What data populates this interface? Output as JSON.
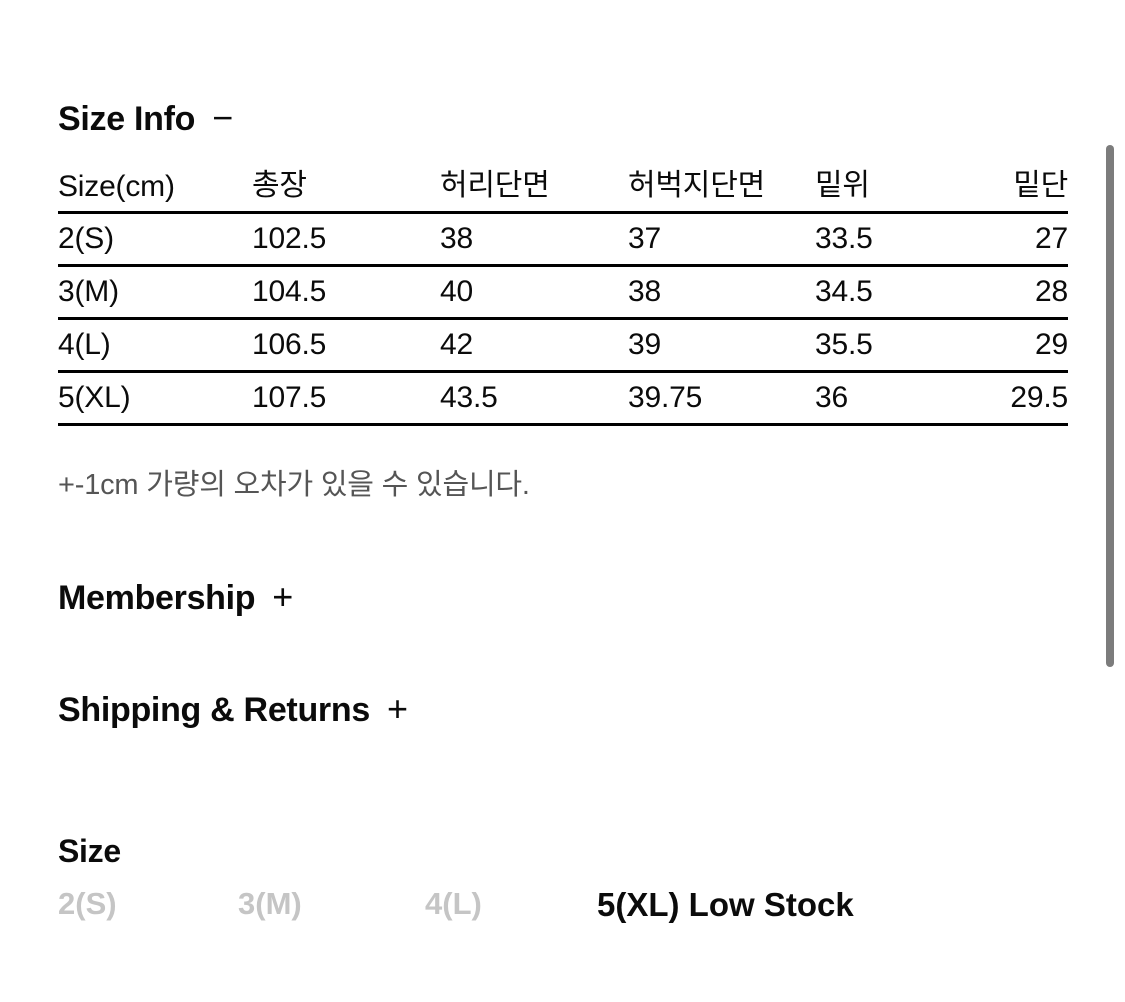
{
  "sections": {
    "size_info": {
      "title": "Size Info",
      "toggle_icon": "−",
      "note": "+-1cm 가량의 오차가 있을 수 있습니다.",
      "table": {
        "headers": [
          "Size(cm)",
          "총장",
          "허리단면",
          "허벅지단면",
          "밑위",
          "밑단"
        ],
        "rows": [
          [
            "2(S)",
            "102.5",
            "38",
            "37",
            "33.5",
            "27"
          ],
          [
            "3(M)",
            "104.5",
            "40",
            "38",
            "34.5",
            "28"
          ],
          [
            "4(L)",
            "106.5",
            "42",
            "39",
            "35.5",
            "29"
          ],
          [
            "5(XL)",
            "107.5",
            "43.5",
            "39.75",
            "36",
            "29.5"
          ]
        ]
      }
    },
    "membership": {
      "title": "Membership",
      "toggle_icon": "+"
    },
    "shipping_returns": {
      "title": "Shipping & Returns",
      "toggle_icon": "+"
    }
  },
  "size_selector": {
    "label": "Size",
    "options": [
      {
        "label": "2(S)",
        "state": "muted"
      },
      {
        "label": "3(M)",
        "state": "muted"
      },
      {
        "label": "4(L)",
        "state": "muted"
      },
      {
        "label": "5(XL) Low Stock",
        "state": "emphasized"
      }
    ]
  },
  "colors": {
    "text": "#0b0b0b",
    "note_gray": "#555555",
    "muted_option": "#c5c5c5",
    "table_border": "#000000",
    "scrollbar": "#7c7c7c"
  }
}
